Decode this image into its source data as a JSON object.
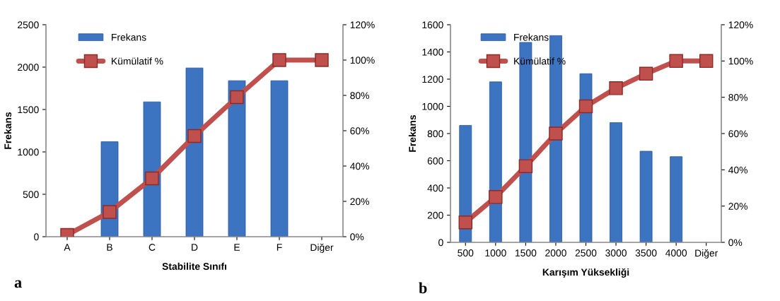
{
  "chart_data": [
    {
      "type": "bar",
      "xlabel": "Stabilite Sınıfı",
      "ylabel": "Frekans",
      "annotations": [
        "a"
      ],
      "categories": [
        "A",
        "B",
        "C",
        "D",
        "E",
        "F",
        "Diğer"
      ],
      "series": [
        {
          "name": "Frekans",
          "color": "#3c74c2",
          "values": [
            null,
            1120,
            1590,
            1990,
            1840,
            1840,
            null
          ]
        },
        {
          "name": "Kümülatif %",
          "type": "line",
          "axis": "y2",
          "color": "#c0504d",
          "marker": "square",
          "values": [
            1,
            14,
            33,
            57,
            79,
            100,
            100
          ]
        }
      ],
      "ylim": [
        0,
        2500
      ],
      "yticks": [
        0,
        500,
        1000,
        1500,
        2000,
        2500
      ],
      "y2lim": [
        0,
        120
      ],
      "y2ticks": [
        {
          "value": 0,
          "label": "0%"
        },
        {
          "value": 20,
          "label": "20%"
        },
        {
          "value": 40,
          "label": "40%"
        },
        {
          "value": 60,
          "label": "60%"
        },
        {
          "value": 80,
          "label": "80%"
        },
        {
          "value": 100,
          "label": "100%"
        },
        {
          "value": 120,
          "label": "120%"
        }
      ],
      "legend": "top left",
      "grid": false
    },
    {
      "type": "bar",
      "xlabel": "Karışım Yüksekliği",
      "ylabel": "Frekans",
      "annotations": [
        "b"
      ],
      "categories": [
        "500",
        "1000",
        "1500",
        "2000",
        "2500",
        "3000",
        "3500",
        "4000",
        "Diğer"
      ],
      "series": [
        {
          "name": "Frekans",
          "color": "#3c74c2",
          "values": [
            860,
            1180,
            1470,
            1520,
            1240,
            880,
            670,
            630,
            null
          ]
        },
        {
          "name": "Kümülatif %",
          "type": "line",
          "axis": "y2",
          "color": "#c0504d",
          "marker": "square",
          "values": [
            11,
            25,
            42,
            60,
            75,
            85,
            93,
            100,
            100
          ]
        }
      ],
      "ylim": [
        0,
        1600
      ],
      "yticks": [
        0,
        200,
        400,
        600,
        800,
        1000,
        1200,
        1400,
        1600
      ],
      "y2lim": [
        0,
        120
      ],
      "y2ticks": [
        {
          "value": 0,
          "label": "0%"
        },
        {
          "value": 20,
          "label": "20%"
        },
        {
          "value": 40,
          "label": "40%"
        },
        {
          "value": 60,
          "label": "60%"
        },
        {
          "value": 80,
          "label": "80%"
        },
        {
          "value": 100,
          "label": "100%"
        },
        {
          "value": 120,
          "label": "120%"
        }
      ],
      "legend": "top left",
      "grid": false
    }
  ]
}
